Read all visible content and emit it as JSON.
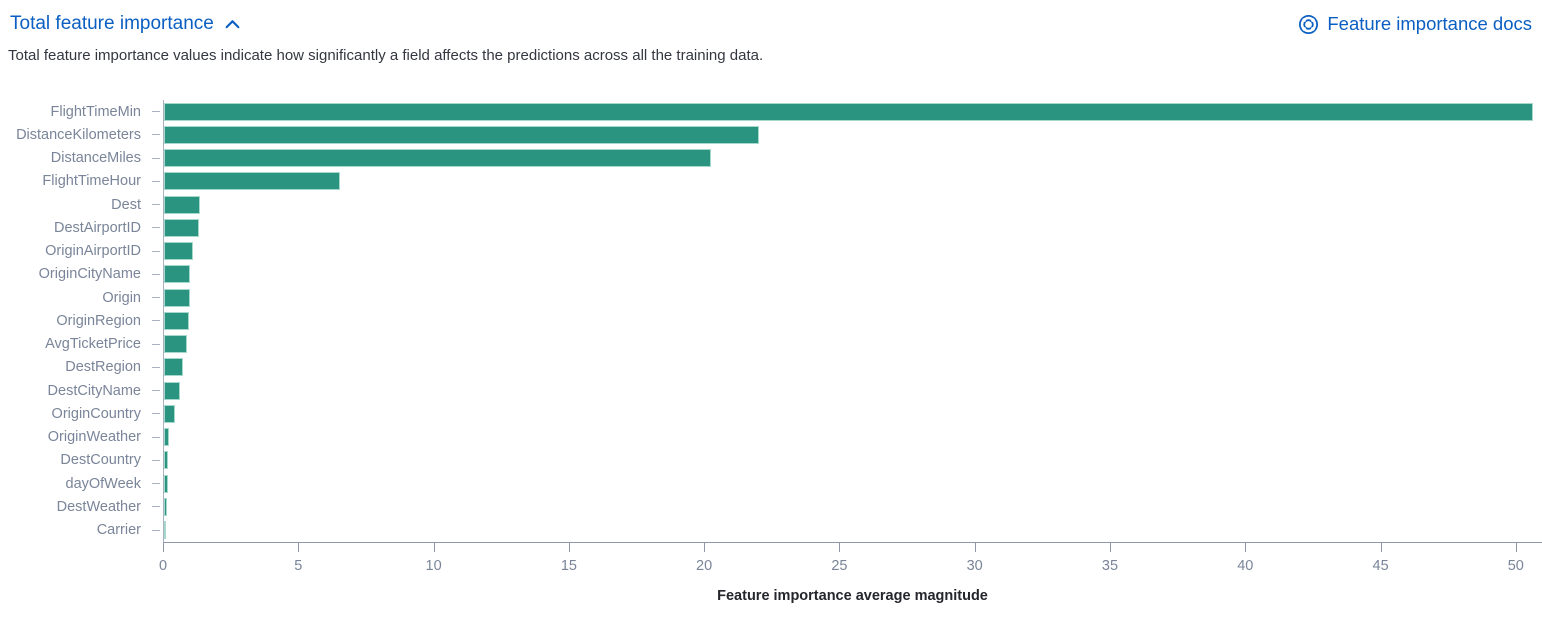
{
  "header": {
    "title": "Total feature importance",
    "docs_link": "Feature importance docs",
    "subtitle": "Total feature importance values indicate how significantly a field affects the predictions across all the training data."
  },
  "chart_data": {
    "type": "bar",
    "orientation": "horizontal",
    "title": "Total feature importance",
    "categories": [
      "FlightTimeMin",
      "DistanceKilometers",
      "DistanceMiles",
      "FlightTimeHour",
      "Dest",
      "DestAirportID",
      "OriginAirportID",
      "OriginCityName",
      "Origin",
      "OriginRegion",
      "AvgTicketPrice",
      "DestRegion",
      "DestCityName",
      "OriginCountry",
      "OriginWeather",
      "DestCountry",
      "dayOfWeek",
      "DestWeather",
      "Carrier"
    ],
    "values": [
      50.6,
      22.0,
      20.2,
      6.5,
      1.34,
      1.31,
      1.06,
      0.97,
      0.95,
      0.91,
      0.85,
      0.71,
      0.59,
      0.42,
      0.18,
      0.16,
      0.15,
      0.12,
      0.06
    ],
    "xlabel": "Feature importance average magnitude",
    "ylabel": "",
    "x_ticks": [
      0,
      5,
      10,
      15,
      20,
      25,
      30,
      35,
      40,
      45,
      50
    ],
    "xlim": [
      0,
      51
    ],
    "grid": false,
    "legend": "none",
    "colors": {
      "bar_fill": "#2a9481",
      "bar_edge": "#a7d8cc",
      "axis_label": "#7a8599",
      "axis_line": "#8e98a9",
      "link_blue": "#0b5fc2",
      "body_text": "#343741"
    }
  }
}
